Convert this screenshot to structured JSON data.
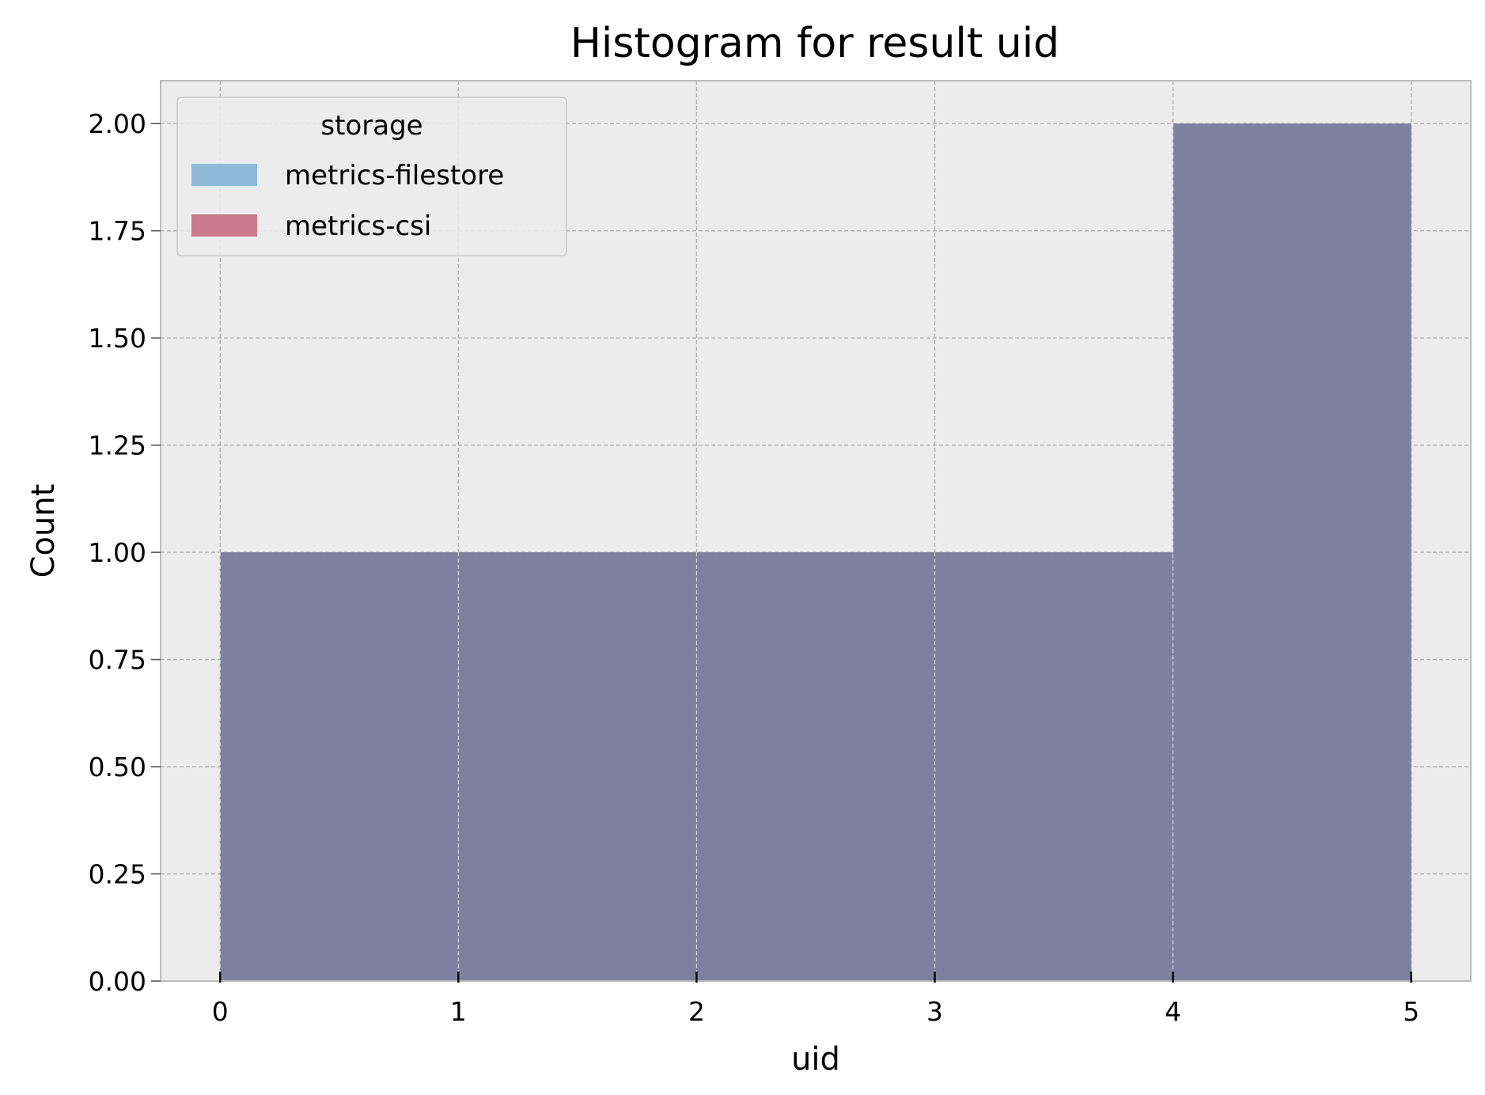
{
  "chart_data": {
    "type": "bar",
    "title": "Histogram for result uid",
    "xlabel": "uid",
    "ylabel": "Count",
    "xlim": [
      -0.25,
      5.25
    ],
    "ylim": [
      0,
      2.1
    ],
    "xticks": [
      0,
      1,
      2,
      3,
      4,
      5
    ],
    "xtick_labels": [
      "0",
      "1",
      "2",
      "3",
      "4",
      "5"
    ],
    "yticks": [
      0,
      0.25,
      0.5,
      0.75,
      1.0,
      1.25,
      1.5,
      1.75,
      2.0
    ],
    "ytick_labels": [
      "0.00",
      "0.25",
      "0.50",
      "0.75",
      "1.00",
      "1.25",
      "1.50",
      "1.75",
      "2.00"
    ],
    "bins": [
      [
        0,
        1
      ],
      [
        1,
        2
      ],
      [
        2,
        3
      ],
      [
        3,
        4
      ],
      [
        4,
        5
      ]
    ],
    "series": [
      {
        "name": "metrics-filestore",
        "color": "#8db9d6",
        "values": [
          1,
          1,
          1,
          1,
          2
        ]
      },
      {
        "name": "metrics-csi",
        "color": "#c97a8c",
        "values": [
          1,
          1,
          1,
          1,
          2
        ]
      }
    ],
    "overlap_color": "#7f80a0",
    "legend": {
      "title": "storage",
      "placement": "top-left"
    },
    "grid": true,
    "background": "#ececec"
  }
}
